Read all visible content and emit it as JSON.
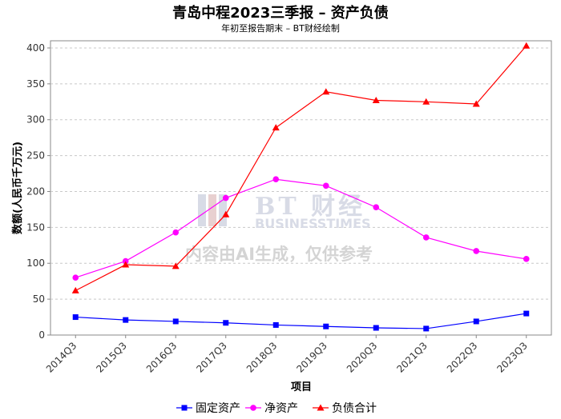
{
  "chart_data": {
    "type": "line",
    "title": "青岛中程2023三季报 – 资产负债",
    "subtitle": "年初至报告期末 – BT财经绘制",
    "xlabel": "项目",
    "ylabel": "数额(人民币千万元)",
    "categories": [
      "2014Q3",
      "2015Q3",
      "2016Q3",
      "2017Q3",
      "2018Q3",
      "2019Q3",
      "2020Q3",
      "2021Q3",
      "2022Q3",
      "2023Q3"
    ],
    "ylim": [
      0,
      410
    ],
    "yticks": [
      0,
      50,
      100,
      150,
      200,
      250,
      300,
      350,
      400
    ],
    "grid": true,
    "legend_position": "bottom-center",
    "series": [
      {
        "name": "固定资产",
        "color": "#0000ff",
        "marker": "square",
        "values": [
          25,
          21,
          19,
          17,
          14,
          12,
          10,
          9,
          19,
          30
        ]
      },
      {
        "name": "净资产",
        "color": "#ff00ff",
        "marker": "circle",
        "values": [
          80,
          103,
          143,
          191,
          217,
          208,
          178,
          136,
          117,
          106
        ]
      },
      {
        "name": "负债合计",
        "color": "#ff0000",
        "marker": "triangle",
        "values": [
          62,
          98,
          96,
          168,
          289,
          339,
          327,
          325,
          322,
          403
        ]
      }
    ]
  },
  "watermark": {
    "brand": "BT 财经",
    "brand_sub": "BUSINESSTIMES",
    "notice": "内容由AI生成，仅供参考"
  }
}
